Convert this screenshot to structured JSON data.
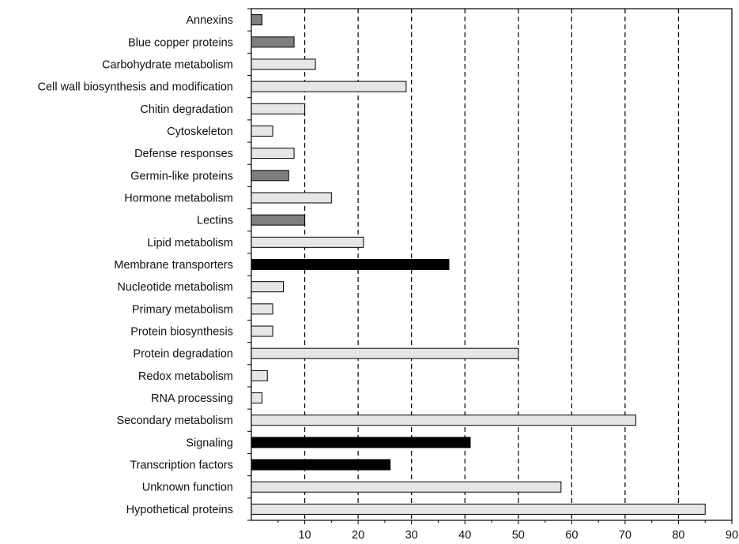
{
  "chart_data": {
    "type": "bar",
    "orientation": "horizontal",
    "title": "",
    "xlabel": "",
    "ylabel": "",
    "xlim": [
      0,
      90
    ],
    "x_ticks": [
      10,
      20,
      30,
      40,
      50,
      60,
      70,
      80,
      90
    ],
    "grid": "vertical dashed lines at 10, 20, 30, 40, 50, 60, 70, 80",
    "legend": "none",
    "colors": {
      "light": "#e6e6e6",
      "medium": "#7f7f7f",
      "dark": "#000000",
      "outline": "#000000"
    },
    "categories": [
      "Annexins",
      "Blue copper proteins",
      "Carbohydrate metabolism",
      "Cell wall biosynthesis and modification",
      "Chitin degradation",
      "Cytoskeleton",
      "Defense responses",
      "Germin-like proteins",
      "Hormone metabolism",
      "Lectins",
      "Lipid metabolism",
      "Membrane transporters",
      "Nucleotide metabolism",
      "Primary metabolism",
      "Protein biosynthesis",
      "Protein degradation",
      "Redox metabolism",
      "RNA processing",
      "Secondary metabolism",
      "Signaling",
      "Transcription factors",
      "Unknown function",
      "Hypothetical proteins"
    ],
    "values": [
      2,
      8,
      12,
      29,
      10,
      4,
      8,
      7,
      15,
      10,
      21,
      37,
      6,
      4,
      4,
      50,
      3,
      2,
      72,
      41,
      26,
      58,
      85
    ],
    "bar_colors": [
      "medium",
      "medium",
      "light",
      "light",
      "light",
      "light",
      "light",
      "medium",
      "light",
      "medium",
      "light",
      "dark",
      "light",
      "light",
      "light",
      "light",
      "light",
      "light",
      "light",
      "dark",
      "dark",
      "light",
      "light"
    ]
  }
}
